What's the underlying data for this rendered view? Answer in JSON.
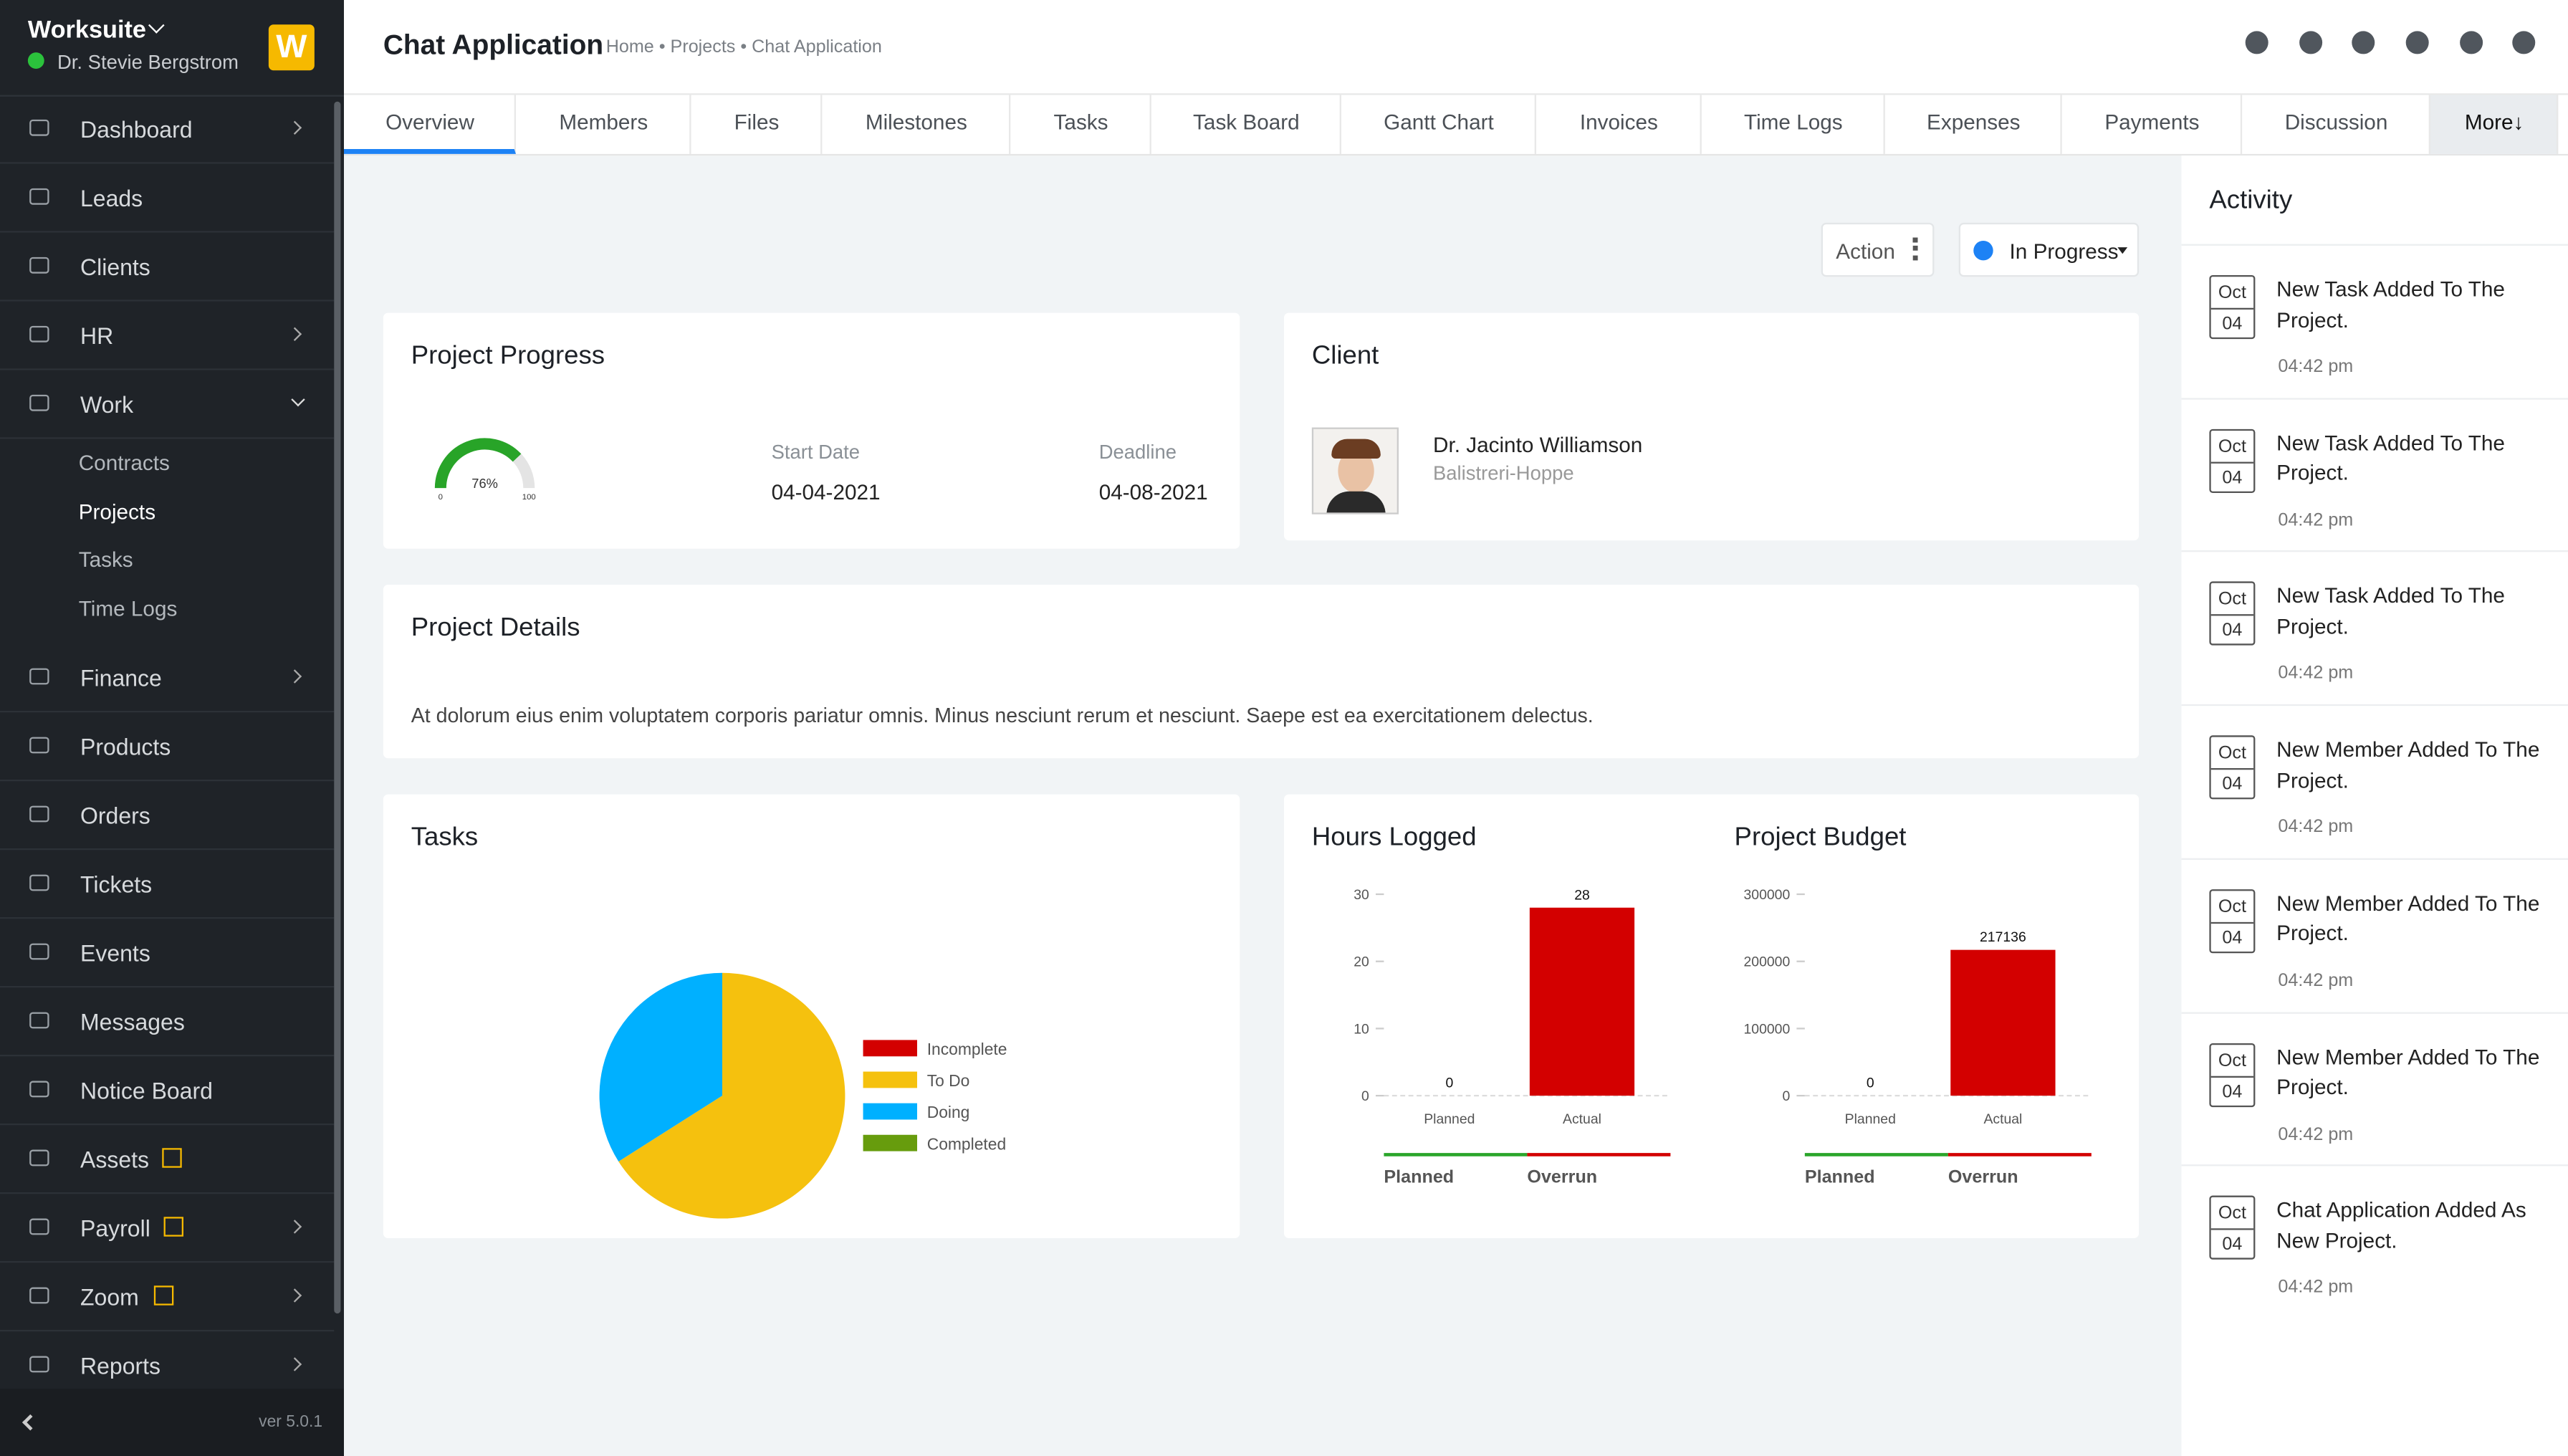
{
  "sidebar": {
    "brand": "Worksuite",
    "user": "Dr. Stevie Bergstrom",
    "logo": "W",
    "menu": [
      "Dashboard",
      "Leads",
      "Clients",
      "HR",
      "Work",
      "Finance",
      "Products",
      "Orders",
      "Tickets",
      "Events",
      "Messages",
      "Notice Board",
      "Assets",
      "Payroll",
      "Zoom",
      "Reports"
    ],
    "submenu": [
      "Contracts",
      "Projects",
      "Tasks",
      "Time Logs"
    ],
    "version": "ver 5.0.1"
  },
  "header": {
    "title": "Chat Application",
    "breadcrumb": "Home • Projects • Chat Application"
  },
  "tabs": [
    "Overview",
    "Members",
    "Files",
    "Milestones",
    "Tasks",
    "Task Board",
    "Gantt Chart",
    "Invoices",
    "Time Logs",
    "Expenses",
    "Payments",
    "Discussion",
    "More↓"
  ],
  "toolbar": {
    "action": "Action",
    "status": "In Progress"
  },
  "project_progress": {
    "title": "Project Progress",
    "gauge": {
      "value": 76,
      "label": "76%",
      "min": 0,
      "max": 100
    },
    "start_label": "Start Date",
    "start": "04-04-2021",
    "deadline_label": "Deadline",
    "deadline": "04-08-2021"
  },
  "client": {
    "title": "Client",
    "name": "Dr. Jacinto Williamson",
    "company": "Balistreri-Hoppe"
  },
  "project_details": {
    "title": "Project Details",
    "text": "At dolorum eius enim voluptatem corporis pariatur omnis. Minus nesciunt rerum et nesciunt. Saepe est ea exercitationem delectus."
  },
  "chart_data": [
    {
      "type": "pie",
      "title": "Tasks",
      "categories": [
        "Incomplete",
        "To Do",
        "Doing",
        "Completed"
      ],
      "values": [
        0,
        66,
        34,
        0
      ],
      "colors": [
        "#d30000",
        "#f5c10e",
        "#00b0ff",
        "#679c0d"
      ]
    },
    {
      "type": "bar",
      "title": "Hours Logged",
      "categories": [
        "Planned",
        "Actual"
      ],
      "values": [
        0,
        28
      ],
      "color": "#d30000",
      "ylim": [
        0,
        30
      ],
      "yticks": [
        0,
        10,
        20,
        30
      ],
      "legend": [
        {
          "name": "Planned",
          "color": "#2aa52a"
        },
        {
          "name": "Overrun",
          "color": "#d30000"
        }
      ]
    },
    {
      "type": "bar",
      "title": "Project Budget",
      "categories": [
        "Planned",
        "Actual"
      ],
      "values": [
        0,
        217136
      ],
      "color": "#d30000",
      "ylim": [
        0,
        300000
      ],
      "yticks": [
        0,
        100000,
        200000,
        300000
      ],
      "legend": [
        {
          "name": "Planned",
          "color": "#2aa52a"
        },
        {
          "name": "Overrun",
          "color": "#d30000"
        }
      ]
    }
  ],
  "activity": {
    "title": "Activity",
    "items": [
      {
        "month": "Oct",
        "day": "04",
        "text": "New Task Added To The Project.",
        "time": "04:42 pm"
      },
      {
        "month": "Oct",
        "day": "04",
        "text": "New Task Added To The Project.",
        "time": "04:42 pm"
      },
      {
        "month": "Oct",
        "day": "04",
        "text": "New Task Added To The Project.",
        "time": "04:42 pm"
      },
      {
        "month": "Oct",
        "day": "04",
        "text": "New Member Added To The Project.",
        "time": "04:42 pm"
      },
      {
        "month": "Oct",
        "day": "04",
        "text": "New Member Added To The Project.",
        "time": "04:42 pm"
      },
      {
        "month": "Oct",
        "day": "04",
        "text": "New Member Added To The Project.",
        "time": "04:42 pm"
      },
      {
        "month": "Oct",
        "day": "04",
        "text": "Chat Application Added As New Project.",
        "time": "04:42 pm"
      }
    ]
  }
}
